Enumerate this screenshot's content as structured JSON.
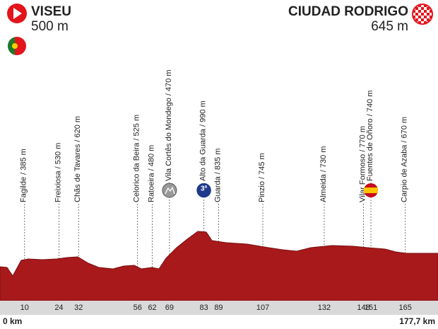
{
  "start": {
    "name": "VISEU",
    "altitude": "500 m"
  },
  "finish": {
    "name": "CIUDAD RODRIGO",
    "altitude": "645 m"
  },
  "axis": {
    "start": "0 km",
    "end": "177,7 km"
  },
  "waypoints": [
    {
      "label": "Fagilde / 385 m",
      "km": 10
    },
    {
      "label": "Freixiosa / 530 m",
      "km": 24
    },
    {
      "label": "Chãs de Tavares / 620 m",
      "km": 32
    },
    {
      "label": "Celorico da Beira / 525 m",
      "km": 56
    },
    {
      "label": "Ratoeira / 480 m",
      "km": 62
    },
    {
      "label": "Vila Cortês do Mondego / 470 m",
      "km": 69
    },
    {
      "label": "Alto da Guarda / 990 m",
      "km": 83,
      "category": "3ª"
    },
    {
      "label": "Guarda / 835 m",
      "km": 89
    },
    {
      "label": "Pinzio / 745 m",
      "km": 107
    },
    {
      "label": "Almeida / 730 m",
      "km": 132
    },
    {
      "label": "Vilar Formoso / 770 m",
      "km": 148
    },
    {
      "label": "Fuentes de Oñoro / 740 m",
      "km": 151
    },
    {
      "label": "Carpio de Azaba / 670 m",
      "km": 165
    }
  ]
}
